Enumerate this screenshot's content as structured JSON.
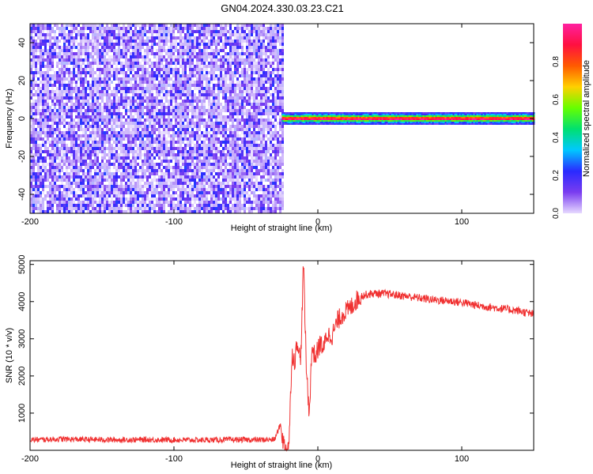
{
  "title": "GN04.2024.330.03.23.C21",
  "chart_data": [
    {
      "type": "heatmap",
      "xlabel": "Height of straight line (km)",
      "ylabel": "Frequency (Hz)",
      "xlim": [
        -200,
        150
      ],
      "ylim": [
        -50,
        50
      ],
      "xticks": [
        -200,
        -100,
        0,
        100
      ],
      "yticks": [
        -40,
        -20,
        0,
        20,
        40
      ],
      "colorbar": {
        "label": "Normalized spectral amplitude",
        "range": [
          0,
          1
        ],
        "ticks": [
          0.0,
          0.2,
          0.4,
          0.6,
          0.8
        ],
        "colormap": [
          "#e6d9ff",
          "#7a3cf0",
          "#2a2aff",
          "#00c8ff",
          "#00e070",
          "#66ff00",
          "#ffd000",
          "#ff5a00",
          "#ff1040",
          "#ff20a0"
        ]
      },
      "features": [
        {
          "desc": "broadband noise",
          "x_range": [
            -200,
            -24
          ],
          "y_range": [
            -50,
            50
          ],
          "level": 0.15
        },
        {
          "desc": "carrier line",
          "x_range": [
            -25,
            150
          ],
          "y": 0,
          "level": 0.95
        }
      ]
    },
    {
      "type": "line",
      "xlabel": "Height of straight line (km)",
      "ylabel": "SNR (10 * v/v)",
      "xlim": [
        -200,
        150
      ],
      "ylim": [
        0,
        5100
      ],
      "xticks": [
        -200,
        -100,
        0,
        100
      ],
      "yticks": [
        1000,
        2000,
        3000,
        4000,
        5000
      ],
      "color": "#f03030",
      "series": [
        {
          "x": [
            -200,
            -180,
            -160,
            -140,
            -120,
            -100,
            -80,
            -60,
            -40,
            -30,
            -26,
            -24,
            -22,
            -20,
            -18,
            -16,
            -14,
            -12,
            -10,
            -8,
            -6,
            -4,
            -2,
            0,
            2,
            4,
            6,
            10,
            14,
            18,
            22,
            26,
            30,
            35,
            40,
            50,
            60,
            70,
            80,
            90,
            100,
            110,
            120,
            130,
            140,
            150
          ],
          "y": [
            280,
            300,
            290,
            280,
            285,
            280,
            275,
            285,
            280,
            290,
            700,
            200,
            40,
            200,
            2600,
            2400,
            3000,
            2300,
            5050,
            2200,
            1000,
            2800,
            2500,
            2700,
            2900,
            2700,
            3100,
            3100,
            3500,
            3700,
            3800,
            4000,
            4150,
            4200,
            4220,
            4200,
            4150,
            4100,
            4050,
            4020,
            3980,
            3900,
            3850,
            3800,
            3750,
            3650
          ]
        }
      ]
    }
  ]
}
